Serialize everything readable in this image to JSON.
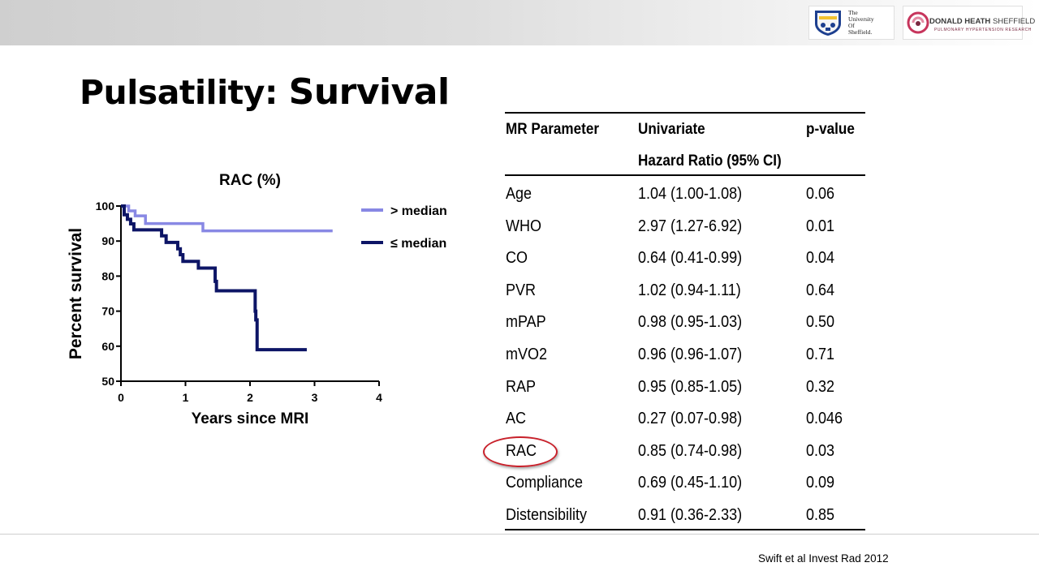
{
  "header": {
    "uos_logo": {
      "lines": [
        "The",
        "University",
        "Of",
        "Sheffield."
      ]
    },
    "dh_logo": {
      "title_bold": "DONALD HEATH",
      "title_light": "SHEFFIELD",
      "subtitle": "PULMONARY HYPERTENSION RESEARCH"
    }
  },
  "slide": {
    "title_part1": "Pulsatility:",
    "title_part2": "Survival",
    "citation": "Swift et al Invest Rad 2012"
  },
  "chart_data": {
    "type": "line",
    "subtype": "step",
    "title": "RAC (%)",
    "xlabel": "Years since MRI",
    "ylabel": "Percent survival",
    "xlim": [
      0,
      4
    ],
    "ylim": [
      50,
      100
    ],
    "xticks": [
      0,
      1,
      2,
      3,
      4
    ],
    "yticks": [
      50,
      60,
      70,
      80,
      90,
      100
    ],
    "grid": false,
    "legend_position": "top-right",
    "series": [
      {
        "name": "> median",
        "color": "#8888e4",
        "x": [
          0,
          0.12,
          0.22,
          0.38,
          1.27,
          3.28
        ],
        "y": [
          100,
          98.6,
          97.2,
          95.0,
          92.9,
          92.9
        ]
      },
      {
        "name": "≤ median",
        "color": "#0d1566",
        "x": [
          0,
          0.05,
          0.1,
          0.15,
          0.2,
          0.63,
          0.7,
          0.88,
          0.92,
          0.96,
          1.2,
          1.46,
          1.48,
          2.08,
          2.09,
          2.11,
          2.88
        ],
        "y": [
          100,
          97.5,
          96.2,
          94.9,
          93.2,
          91.5,
          89.6,
          87.8,
          86.1,
          84.2,
          82.3,
          78.5,
          75.8,
          70.0,
          67.5,
          59.0,
          59.0
        ]
      }
    ]
  },
  "table": {
    "headers": {
      "param": "MR Parameter",
      "hr_line1": "Univariate",
      "hr_line2": "Hazard Ratio (95% CI)",
      "p": "p-value"
    },
    "rows": [
      {
        "param": "Age",
        "hr": "1.04 (1.00-1.08)",
        "p": "0.06"
      },
      {
        "param": "WHO",
        "hr": "2.97 (1.27-6.92)",
        "p": "0.01"
      },
      {
        "param": "CO",
        "hr": "0.64 (0.41-0.99)",
        "p": "0.04"
      },
      {
        "param": "PVR",
        "hr": "1.02 (0.94-1.11)",
        "p": "0.64"
      },
      {
        "param": "mPAP",
        "hr": "0.98 (0.95-1.03)",
        "p": "0.50"
      },
      {
        "param": "mVO2",
        "hr": "0.96 (0.96-1.07)",
        "p": "0.71"
      },
      {
        "param": "RAP",
        "hr": "0.95 (0.85-1.05)",
        "p": "0.32"
      },
      {
        "param": "AC",
        "hr": "0.27 (0.07-0.98)",
        "p": "0.046"
      },
      {
        "param": "RAC",
        "hr": "0.85 (0.74-0.98)",
        "p": "0.03",
        "highlighted": true
      },
      {
        "param": "Compliance",
        "hr": "0.69 (0.45-1.10)",
        "p": "0.09"
      },
      {
        "param": "Distensibility",
        "hr": "0.91 (0.36-2.33)",
        "p": "0.85"
      }
    ],
    "highlight_color": "#c8202a"
  }
}
